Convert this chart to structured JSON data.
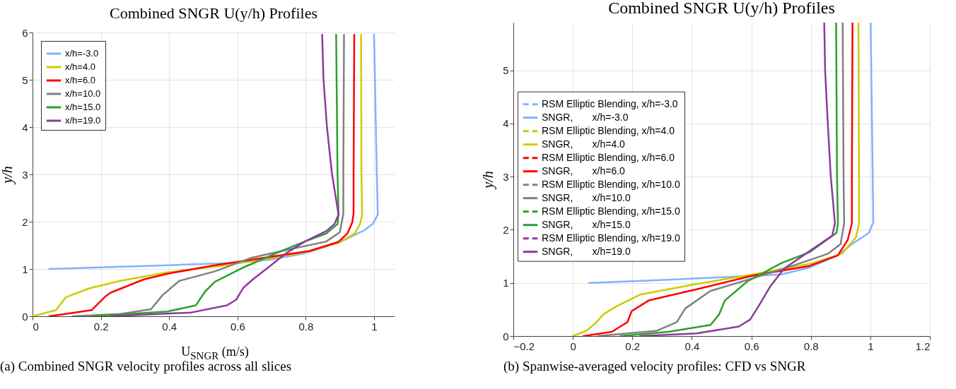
{
  "chart_data": [
    {
      "type": "line",
      "title": "Combined SNGR U(y/h) Profiles",
      "xlabel": "U$_{SNGR}$ (m/s)",
      "ylabel": "y/h",
      "xlim": [
        0,
        1.06
      ],
      "xticks": [
        0,
        0.2,
        0.4,
        0.6,
        0.8,
        1
      ],
      "ylim": [
        0,
        6
      ],
      "yticks": [
        0,
        1,
        2,
        3,
        4,
        5,
        6
      ],
      "grid": true,
      "legend": "top left",
      "line_style": "solid",
      "annotations": [
        "(a) Combined SNGR velocity profiles across all slices"
      ],
      "series": [
        {
          "name": "x/h=-3.0",
          "color": "#80b3ff",
          "x": [
            1.0,
            1.008,
            1.011,
            0.997,
            0.972,
            0.895,
            0.797,
            0.7,
            0.603,
            0.395,
            0.049
          ],
          "values": [
            5.95,
            3.0,
            2.15,
            1.96,
            1.82,
            1.55,
            1.33,
            1.2,
            1.13,
            1.08,
            1.0
          ]
        },
        {
          "name": "x/h=4.0",
          "color": "#cccc00",
          "x": [
            0.962,
            0.963,
            0.965,
            0.959,
            0.943,
            0.895,
            0.797,
            0.673,
            0.534,
            0.395,
            0.257,
            0.166,
            0.097,
            0.069,
            0
          ],
          "values": [
            5.95,
            3.0,
            2.15,
            1.95,
            1.75,
            1.55,
            1.35,
            1.2,
            1.05,
            0.93,
            0.75,
            0.59,
            0.4,
            0.13,
            0
          ]
        },
        {
          "name": "x/h=6.0",
          "color": "#ff0000",
          "x": [
            0.942,
            0.94,
            0.94,
            0.936,
            0.922,
            0.895,
            0.811,
            0.673,
            0.534,
            0.395,
            0.326,
            0.229,
            0.215,
            0.173,
            0.049
          ],
          "values": [
            5.95,
            3.0,
            2.17,
            1.98,
            1.75,
            1.57,
            1.38,
            1.23,
            1.08,
            0.9,
            0.78,
            0.5,
            0.43,
            0.13,
            0
          ]
        },
        {
          "name": "x/h=10.0",
          "color": "#808080",
          "x": [
            0.912,
            0.91,
            0.91,
            0.9,
            0.86,
            0.742,
            0.638,
            0.534,
            0.43,
            0.381,
            0.347,
            0.257,
            0.118
          ],
          "values": [
            5.95,
            3.0,
            2.17,
            1.78,
            1.58,
            1.4,
            1.23,
            0.95,
            0.75,
            0.45,
            0.15,
            0.05,
            0
          ]
        },
        {
          "name": "x/h=15.0",
          "color": "#2ca02c",
          "x": [
            0.889,
            0.893,
            0.896,
            0.893,
            0.86,
            0.797,
            0.728,
            0.617,
            0.534,
            0.506,
            0.478,
            0.395,
            0.173
          ],
          "values": [
            5.95,
            3.0,
            2.17,
            1.95,
            1.75,
            1.58,
            1.38,
            1.03,
            0.73,
            0.53,
            0.23,
            0.1,
            0
          ]
        },
        {
          "name": "x/h=19.0",
          "color": "#8e3a9d",
          "x": [
            0.848,
            0.852,
            0.862,
            0.877,
            0.896,
            0.884,
            0.86,
            0.797,
            0.742,
            0.693,
            0.645,
            0.617,
            0.596,
            0.569,
            0.465,
            0.229
          ],
          "values": [
            5.95,
            5.0,
            4.0,
            3.0,
            2.15,
            1.95,
            1.8,
            1.58,
            1.33,
            1.05,
            0.78,
            0.6,
            0.35,
            0.23,
            0.08,
            0
          ]
        }
      ]
    },
    {
      "type": "line",
      "title": "Combined SNGR U(y/h) Profiles",
      "ylabel": "y/h",
      "xlim": [
        -0.2,
        1.2
      ],
      "xticks": [
        -0.2,
        0,
        0.2,
        0.4,
        0.6,
        0.8,
        1,
        1.2
      ],
      "ylim": [
        0,
        5.9
      ],
      "yticks": [
        0,
        1,
        2,
        3,
        4,
        5
      ],
      "grid": true,
      "legend": "left",
      "annotations": [
        "(b) Spanwise-averaged velocity profiles: CFD vs SNGR"
      ],
      "series": [
        {
          "name": "RSM Elliptic Blending, x/h=-3.0",
          "color": "#80b3ff",
          "line_style": "dashed",
          "x": [
            null
          ],
          "values": [
            null
          ]
        },
        {
          "name": "SNGR,       x/h=-3.0",
          "color": "#80b3ff",
          "line_style": "solid",
          "x": [
            1.001,
            1.008,
            1.01,
            0.995,
            0.938,
            0.891,
            0.796,
            0.7,
            0.511,
            0.321,
            0.055
          ],
          "values": [
            5.9,
            3.0,
            2.14,
            1.94,
            1.73,
            1.52,
            1.29,
            1.16,
            1.11,
            1.06,
            1.0
          ]
        },
        {
          "name": "RSM Elliptic Blending, x/h=4.0",
          "color": "#cccc00",
          "line_style": "dashed",
          "x": [
            null
          ],
          "values": [
            null
          ]
        },
        {
          "name": "SNGR,       x/h=4.0",
          "color": "#cccc00",
          "line_style": "solid",
          "x": [
            0.96,
            0.962,
            0.962,
            0.952,
            0.905,
            0.805,
            0.606,
            0.416,
            0.226,
            0.15,
            0.103,
            0.079,
            0.046,
            0
          ],
          "values": [
            5.9,
            3.0,
            2.12,
            1.86,
            1.55,
            1.37,
            1.16,
            0.98,
            0.78,
            0.57,
            0.41,
            0.26,
            0.1,
            0
          ]
        },
        {
          "name": "RSM Elliptic Blending, x/h=6.0",
          "color": "#ff0000",
          "line_style": "dashed",
          "x": [
            null
          ],
          "values": [
            null
          ]
        },
        {
          "name": "SNGR,       x/h=6.0",
          "color": "#ff0000",
          "line_style": "solid",
          "x": [
            0.94,
            0.938,
            0.938,
            0.924,
            0.891,
            0.796,
            0.606,
            0.416,
            0.255,
            0.198,
            0.183,
            0.131,
            0.036
          ],
          "values": [
            5.9,
            3.0,
            2.12,
            1.81,
            1.52,
            1.32,
            1.14,
            0.88,
            0.67,
            0.47,
            0.26,
            0.08,
            0
          ]
        },
        {
          "name": "RSM Elliptic Blending, x/h=10.0",
          "color": "#808080",
          "line_style": "dashed",
          "x": [
            null
          ],
          "values": [
            null
          ]
        },
        {
          "name": "SNGR,       x/h=10.0",
          "color": "#808080",
          "line_style": "solid",
          "x": [
            0.907,
            0.91,
            0.912,
            0.9,
            0.858,
            0.748,
            0.606,
            0.463,
            0.378,
            0.349,
            0.283,
            0.084
          ],
          "values": [
            5.9,
            3.0,
            2.12,
            1.73,
            1.55,
            1.34,
            1.09,
            0.85,
            0.52,
            0.26,
            0.1,
            0
          ]
        },
        {
          "name": "RSM Elliptic Blending, x/h=15.0",
          "color": "#2ca02c",
          "line_style": "dashed",
          "x": [
            null
          ],
          "values": [
            null
          ]
        },
        {
          "name": "SNGR,       x/h=15.0",
          "color": "#2ca02c",
          "line_style": "solid",
          "x": [
            0.885,
            0.888,
            0.891,
            0.886,
            0.796,
            0.7,
            0.587,
            0.511,
            0.492,
            0.463,
            0.321,
            0.16
          ],
          "values": [
            5.9,
            3.0,
            2.12,
            1.94,
            1.58,
            1.37,
            1.03,
            0.67,
            0.41,
            0.21,
            0.08,
            0
          ]
        },
        {
          "name": "RSM Elliptic Blending, x/h=19.0",
          "color": "#8e3a9d",
          "line_style": "dashed",
          "x": [
            null
          ],
          "values": [
            null
          ]
        },
        {
          "name": "SNGR,       x/h=19.0",
          "color": "#8e3a9d",
          "line_style": "solid",
          "x": [
            0.845,
            0.848,
            0.857,
            0.867,
            0.881,
            0.872,
            0.796,
            0.71,
            0.663,
            0.625,
            0.596,
            0.558,
            0.416,
            0.226
          ],
          "values": [
            5.9,
            5.0,
            4.0,
            3.0,
            2.12,
            1.89,
            1.6,
            1.27,
            0.93,
            0.57,
            0.31,
            0.18,
            0.05,
            0
          ]
        }
      ]
    }
  ]
}
